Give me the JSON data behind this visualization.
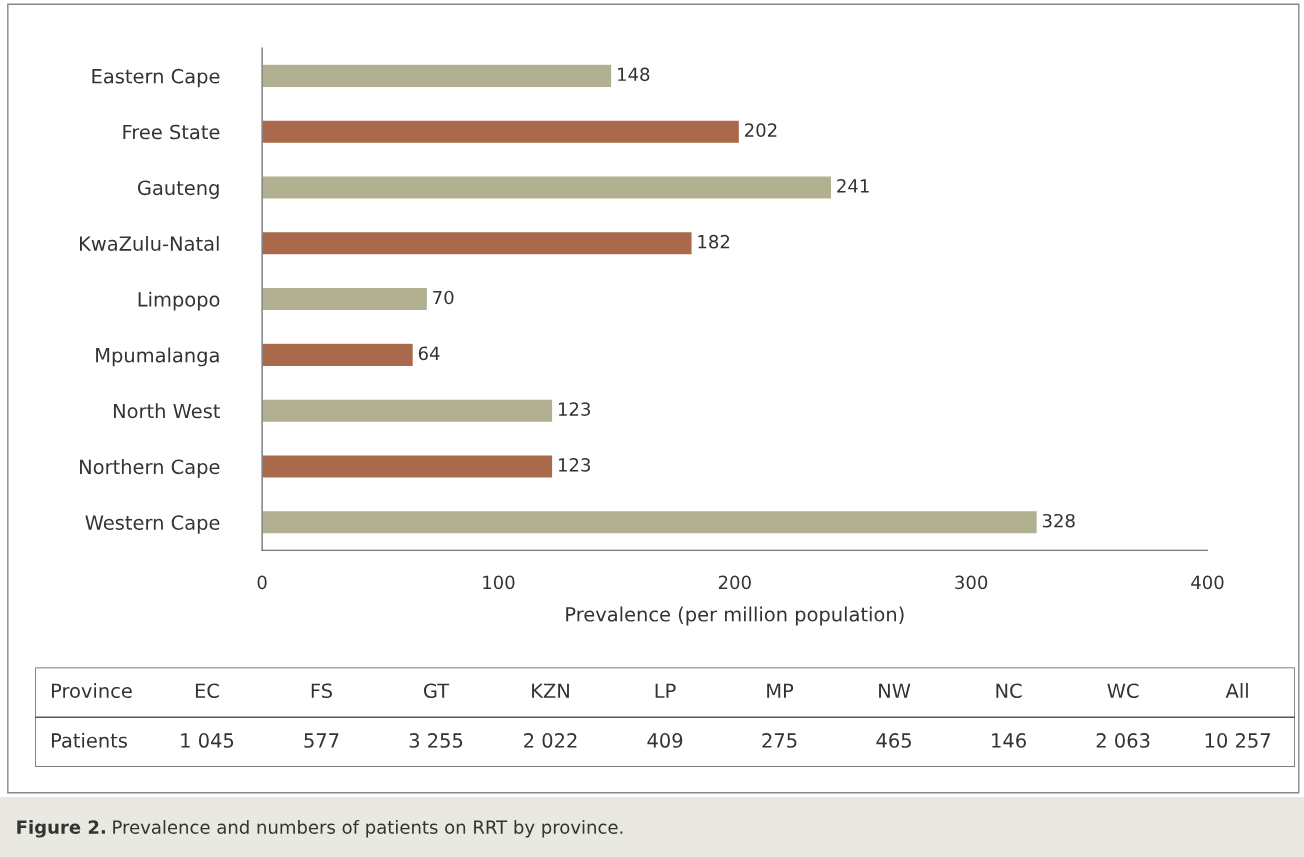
{
  "chart_data": [
    {
      "type": "bar",
      "orientation": "horizontal",
      "xlabel": "Prevalence (per million population)",
      "categories": [
        "Eastern Cape",
        "Free State",
        "Gauteng",
        "KwaZulu-Natal",
        "Limpopo",
        "Mpumalanga",
        "North West",
        "Northern Cape",
        "Western Cape"
      ],
      "values": [
        148,
        202,
        241,
        182,
        70,
        64,
        123,
        123,
        328
      ],
      "colors": [
        "#b1b192",
        "#a9694a",
        "#b1b192",
        "#a9694a",
        "#b1b192",
        "#a9694a",
        "#b1b192",
        "#a9694a",
        "#b1b192"
      ],
      "xlim": [
        0,
        400
      ],
      "xticks": [
        0,
        100,
        200,
        300,
        400
      ],
      "data_labels": true,
      "grid": false,
      "legend": false,
      "annotations": [
        "Figure 2.",
        "Prevalence and numbers of patients on RRT by province."
      ]
    },
    {
      "type": "other",
      "categories": [
        "Province",
        "EC",
        "FS",
        "GT",
        "KZN",
        "LP",
        "MP",
        "NW",
        "NC",
        "WC",
        "All"
      ],
      "value_labels": [
        "Patients",
        "1 045",
        "577",
        "3 255",
        "2 022",
        "409",
        "275",
        "465",
        "146",
        "2 063",
        "10 257"
      ]
    }
  ]
}
